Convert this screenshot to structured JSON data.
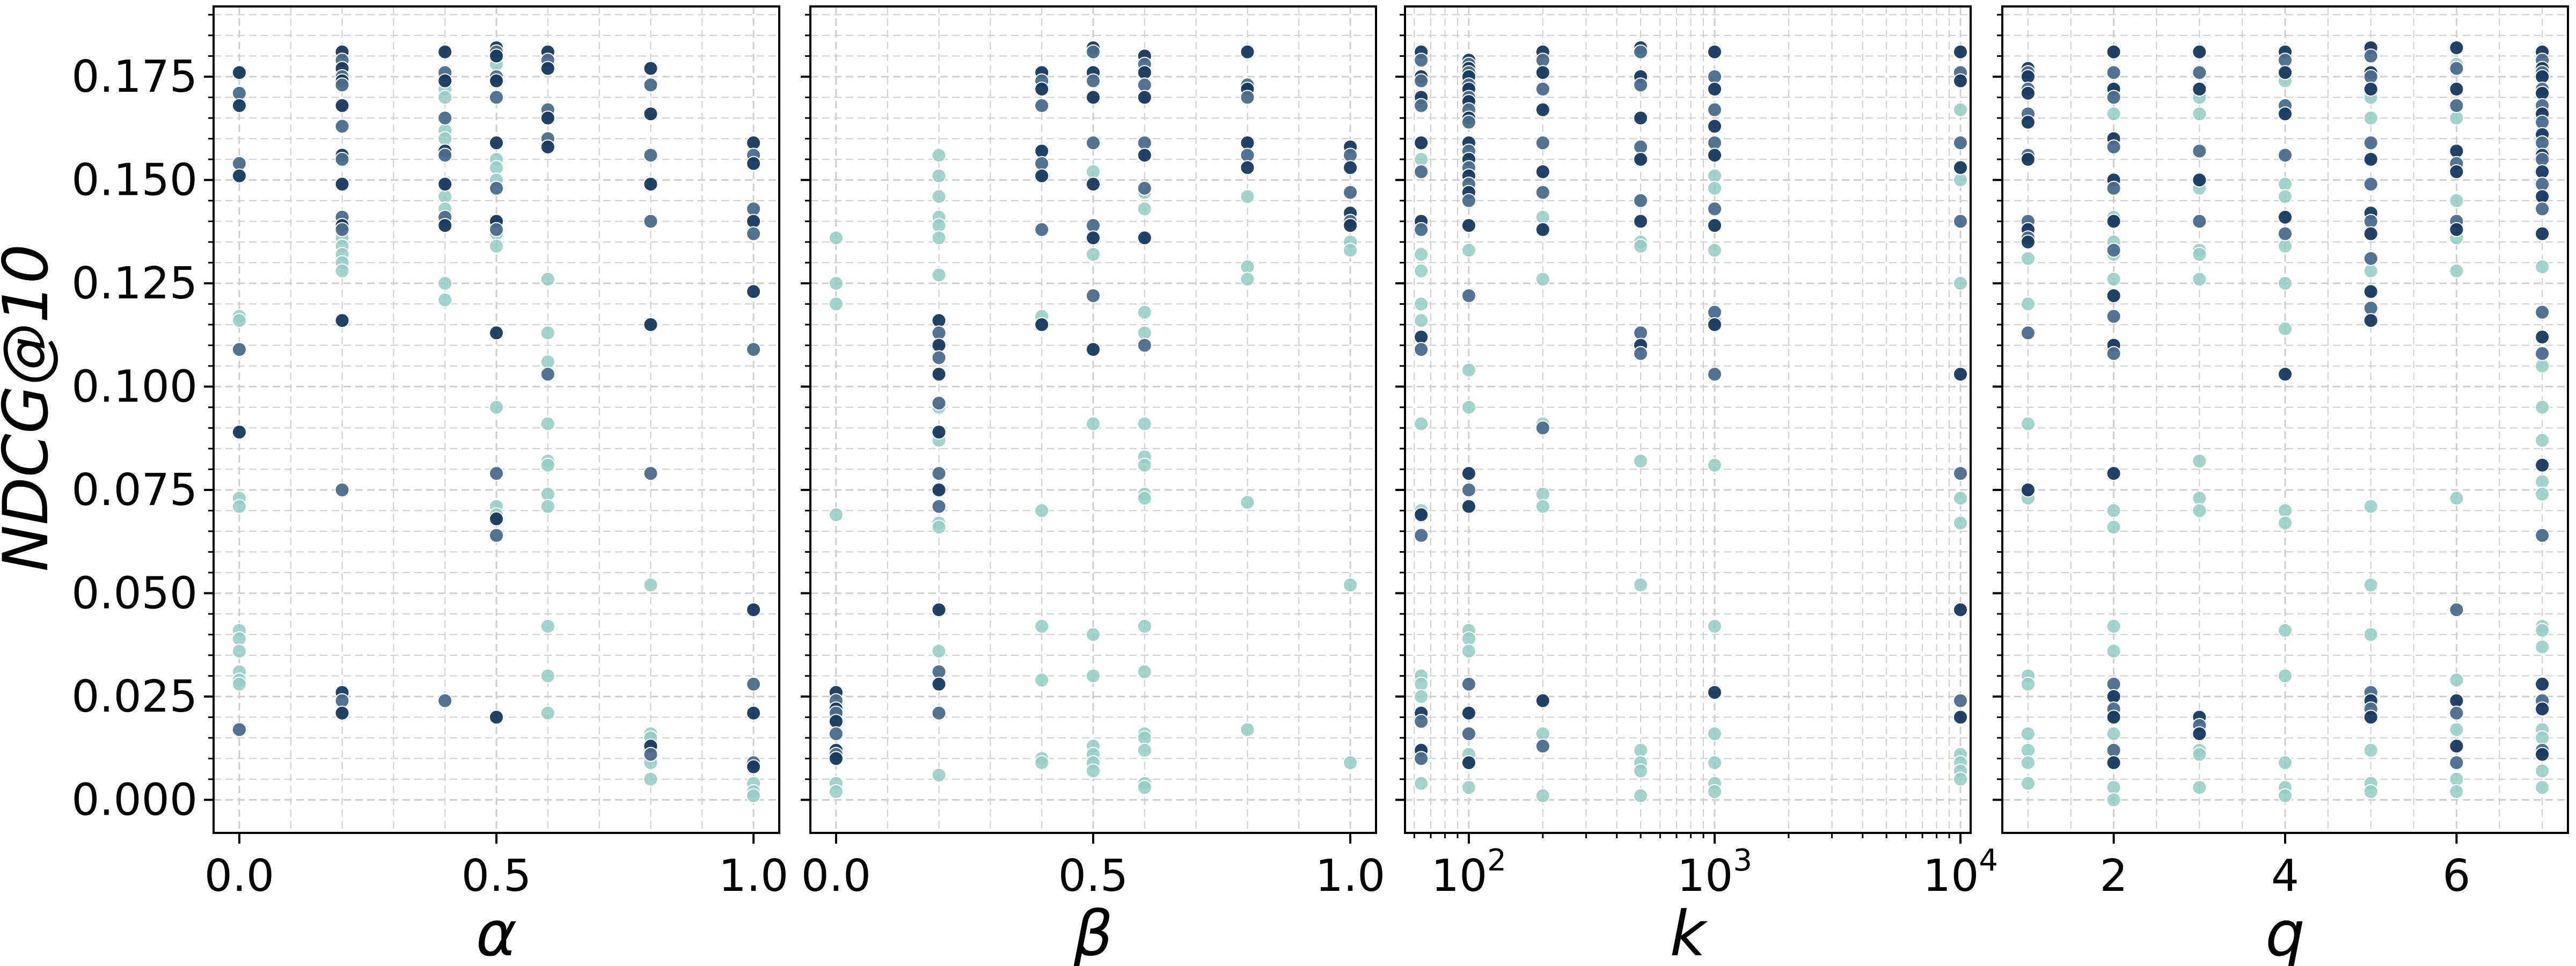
{
  "chart_data": [
    {
      "type": "scatter",
      "xlabel": "α",
      "ylabel": "NDCG@10",
      "xlim": [
        -0.05,
        1.05
      ],
      "ylim": [
        -0.008,
        0.192
      ],
      "x_ticks": [
        0.0,
        0.5,
        1.0
      ],
      "x_tick_labels": [
        "0.0",
        "0.5",
        "1.0"
      ],
      "y_ticks": [
        0.0,
        0.025,
        0.05,
        0.075,
        0.1,
        0.125,
        0.15,
        0.175
      ],
      "y_tick_labels": [
        "0.000",
        "0.025",
        "0.050",
        "0.075",
        "0.100",
        "0.125",
        "0.150",
        "0.175"
      ],
      "grid": true,
      "columns": [
        {
          "x": 0.0,
          "dark": [
            0.176,
            0.171,
            0.168,
            0.154,
            0.151,
            0.109,
            0.089,
            0.017
          ],
          "light": [
            0.117,
            0.116,
            0.073,
            0.071,
            0.041,
            0.039,
            0.036,
            0.031,
            0.029,
            0.028
          ]
        },
        {
          "x": 0.2,
          "dark": [
            0.181,
            0.179,
            0.177,
            0.175,
            0.174,
            0.173,
            0.168,
            0.163,
            0.156,
            0.155,
            0.149,
            0.141,
            0.139,
            0.138,
            0.116,
            0.075,
            0.026,
            0.024,
            0.021
          ],
          "light": [
            0.136,
            0.134,
            0.132,
            0.13,
            0.128
          ]
        },
        {
          "x": 0.4,
          "dark": [
            0.181,
            0.176,
            0.174,
            0.165,
            0.157,
            0.156,
            0.149,
            0.141,
            0.139,
            0.024
          ],
          "light": [
            0.172,
            0.17,
            0.162,
            0.16,
            0.146,
            0.143,
            0.14,
            0.125,
            0.121
          ]
        },
        {
          "x": 0.5,
          "dark": [
            0.182,
            0.181,
            0.18,
            0.175,
            0.174,
            0.17,
            0.159,
            0.148,
            0.14,
            0.138,
            0.113,
            0.079,
            0.068,
            0.064,
            0.02
          ],
          "light": [
            0.178,
            0.155,
            0.153,
            0.15,
            0.14,
            0.137,
            0.134,
            0.095,
            0.071,
            0.069
          ]
        },
        {
          "x": 0.6,
          "dark": [
            0.181,
            0.179,
            0.177,
            0.167,
            0.165,
            0.16,
            0.158,
            0.103
          ],
          "light": [
            0.126,
            0.113,
            0.106,
            0.091,
            0.082,
            0.081,
            0.074,
            0.071,
            0.042,
            0.03,
            0.021
          ]
        },
        {
          "x": 0.8,
          "dark": [
            0.177,
            0.173,
            0.166,
            0.156,
            0.149,
            0.14,
            0.115,
            0.079,
            0.013,
            0.011
          ],
          "light": [
            0.052,
            0.016,
            0.015,
            0.009,
            0.005
          ]
        },
        {
          "x": 1.0,
          "dark": [
            0.159,
            0.156,
            0.154,
            0.143,
            0.14,
            0.137,
            0.123,
            0.109,
            0.046,
            0.028,
            0.021,
            0.009,
            0.008
          ],
          "light": [
            0.004,
            0.002,
            0.001
          ]
        }
      ]
    },
    {
      "type": "scatter",
      "xlabel": "β",
      "xlim": [
        -0.05,
        1.05
      ],
      "ylim": [
        -0.008,
        0.192
      ],
      "x_ticks": [
        0.0,
        0.5,
        1.0
      ],
      "x_tick_labels": [
        "0.0",
        "0.5",
        "1.0"
      ],
      "grid": true,
      "columns": [
        {
          "x": 0.0,
          "dark": [
            0.026,
            0.024,
            0.022,
            0.021,
            0.019,
            0.016,
            0.012,
            0.011,
            0.01
          ],
          "light": [
            0.136,
            0.125,
            0.12,
            0.069,
            0.004,
            0.002
          ]
        },
        {
          "x": 0.2,
          "dark": [
            0.116,
            0.113,
            0.11,
            0.107,
            0.103,
            0.096,
            0.089,
            0.079,
            0.075,
            0.071,
            0.046,
            0.031,
            0.028,
            0.021
          ],
          "light": [
            0.156,
            0.151,
            0.146,
            0.141,
            0.139,
            0.136,
            0.127,
            0.095,
            0.087,
            0.067,
            0.066,
            0.036,
            0.006
          ]
        },
        {
          "x": 0.4,
          "dark": [
            0.176,
            0.174,
            0.172,
            0.168,
            0.157,
            0.154,
            0.151,
            0.138,
            0.115
          ],
          "light": [
            0.117,
            0.07,
            0.042,
            0.029,
            0.01,
            0.009
          ]
        },
        {
          "x": 0.5,
          "dark": [
            0.182,
            0.181,
            0.176,
            0.174,
            0.17,
            0.159,
            0.149,
            0.139,
            0.136,
            0.122,
            0.109
          ],
          "light": [
            0.152,
            0.132,
            0.091,
            0.04,
            0.03,
            0.013,
            0.011,
            0.009,
            0.007
          ]
        },
        {
          "x": 0.6,
          "dark": [
            0.18,
            0.178,
            0.176,
            0.173,
            0.17,
            0.159,
            0.156,
            0.148,
            0.136,
            0.11
          ],
          "light": [
            0.147,
            0.143,
            0.118,
            0.113,
            0.091,
            0.083,
            0.081,
            0.074,
            0.073,
            0.042,
            0.031,
            0.016,
            0.015,
            0.012,
            0.004,
            0.003
          ]
        },
        {
          "x": 0.8,
          "dark": [
            0.181,
            0.173,
            0.172,
            0.17,
            0.159,
            0.156,
            0.153
          ],
          "light": [
            0.146,
            0.129,
            0.126,
            0.072,
            0.017
          ]
        },
        {
          "x": 1.0,
          "dark": [
            0.158,
            0.156,
            0.153,
            0.147,
            0.142,
            0.14,
            0.139
          ],
          "light": [
            0.135,
            0.133,
            0.052,
            0.009
          ]
        }
      ]
    },
    {
      "type": "scatter",
      "xlabel": "k",
      "x_scale": "log",
      "xlim": [
        55,
        11000
      ],
      "ylim": [
        -0.008,
        0.192
      ],
      "x_ticks": [
        100,
        1000,
        10000
      ],
      "x_tick_labels": [
        "10",
        "10",
        "10"
      ],
      "x_tick_exponents": [
        "2",
        "3",
        "4"
      ],
      "grid": true,
      "columns": [
        {
          "x": 64,
          "dark": [
            0.181,
            0.179,
            0.175,
            0.174,
            0.17,
            0.168,
            0.159,
            0.152,
            0.14,
            0.138,
            0.112,
            0.109,
            0.069,
            0.064,
            0.021,
            0.019,
            0.012,
            0.01
          ],
          "light": [
            0.155,
            0.132,
            0.128,
            0.12,
            0.116,
            0.091,
            0.07,
            0.03,
            0.028,
            0.025,
            0.004
          ]
        },
        {
          "x": 100,
          "dark": [
            0.179,
            0.178,
            0.177,
            0.176,
            0.175,
            0.173,
            0.172,
            0.17,
            0.169,
            0.167,
            0.165,
            0.164,
            0.159,
            0.157,
            0.155,
            0.153,
            0.151,
            0.149,
            0.147,
            0.145,
            0.139,
            0.122,
            0.079,
            0.075,
            0.071,
            0.028,
            0.021,
            0.016,
            0.009
          ],
          "light": [
            0.133,
            0.104,
            0.095,
            0.041,
            0.039,
            0.036,
            0.011,
            0.003
          ]
        },
        {
          "x": 200,
          "dark": [
            0.181,
            0.179,
            0.176,
            0.172,
            0.167,
            0.159,
            0.152,
            0.147,
            0.138,
            0.09,
            0.024,
            0.013
          ],
          "light": [
            0.141,
            0.126,
            0.091,
            0.074,
            0.071,
            0.016,
            0.001
          ]
        },
        {
          "x": 500,
          "dark": [
            0.182,
            0.181,
            0.175,
            0.173,
            0.165,
            0.158,
            0.155,
            0.145,
            0.14,
            0.113,
            0.11,
            0.108
          ],
          "light": [
            0.135,
            0.134,
            0.082,
            0.052,
            0.012,
            0.009,
            0.007,
            0.001
          ]
        },
        {
          "x": 1000,
          "dark": [
            0.181,
            0.175,
            0.172,
            0.167,
            0.163,
            0.159,
            0.156,
            0.143,
            0.139,
            0.118,
            0.115,
            0.103,
            0.026
          ],
          "light": [
            0.151,
            0.148,
            0.133,
            0.116,
            0.081,
            0.042,
            0.016,
            0.009,
            0.004,
            0.002
          ]
        },
        {
          "x": 10000,
          "dark": [
            0.181,
            0.176,
            0.174,
            0.159,
            0.153,
            0.14,
            0.103,
            0.079,
            0.046,
            0.024,
            0.02
          ],
          "light": [
            0.167,
            0.15,
            0.125,
            0.073,
            0.067,
            0.011,
            0.009,
            0.007,
            0.005
          ]
        }
      ]
    },
    {
      "type": "scatter",
      "xlabel": "q",
      "xlim": [
        0.7,
        7.3
      ],
      "ylim": [
        -0.008,
        0.192
      ],
      "x_ticks": [
        2,
        4,
        6
      ],
      "x_tick_labels": [
        "2",
        "4",
        "6"
      ],
      "grid": true,
      "columns": [
        {
          "x": 1,
          "dark": [
            0.177,
            0.176,
            0.175,
            0.172,
            0.171,
            0.166,
            0.164,
            0.156,
            0.155,
            0.14,
            0.138,
            0.136,
            0.135,
            0.113,
            0.075
          ],
          "light": [
            0.131,
            0.12,
            0.091,
            0.073,
            0.03,
            0.028,
            0.016,
            0.012,
            0.009,
            0.004
          ]
        },
        {
          "x": 2,
          "dark": [
            0.181,
            0.176,
            0.172,
            0.17,
            0.16,
            0.158,
            0.15,
            0.148,
            0.14,
            0.133,
            0.122,
            0.117,
            0.11,
            0.108,
            0.079,
            0.028,
            0.025,
            0.022,
            0.02,
            0.012,
            0.009
          ],
          "light": [
            0.172,
            0.166,
            0.141,
            0.135,
            0.132,
            0.126,
            0.07,
            0.066,
            0.042,
            0.036,
            0.016,
            0.003,
            0.0
          ]
        },
        {
          "x": 3,
          "dark": [
            0.181,
            0.176,
            0.172,
            0.157,
            0.15,
            0.14,
            0.02,
            0.018,
            0.016
          ],
          "light": [
            0.17,
            0.166,
            0.148,
            0.14,
            0.133,
            0.132,
            0.126,
            0.082,
            0.073,
            0.07,
            0.012,
            0.011,
            0.003
          ]
        },
        {
          "x": 4,
          "dark": [
            0.181,
            0.179,
            0.176,
            0.168,
            0.166,
            0.156,
            0.141,
            0.137,
            0.103
          ],
          "light": [
            0.174,
            0.149,
            0.146,
            0.134,
            0.125,
            0.114,
            0.07,
            0.067,
            0.041,
            0.03,
            0.009,
            0.003,
            0.001
          ]
        },
        {
          "x": 5,
          "dark": [
            0.182,
            0.18,
            0.176,
            0.175,
            0.172,
            0.159,
            0.155,
            0.149,
            0.142,
            0.14,
            0.137,
            0.131,
            0.123,
            0.119,
            0.116,
            0.026,
            0.024,
            0.022,
            0.02
          ],
          "light": [
            0.17,
            0.165,
            0.128,
            0.071,
            0.052,
            0.04,
            0.012,
            0.004,
            0.002
          ]
        },
        {
          "x": 6,
          "dark": [
            0.182,
            0.177,
            0.172,
            0.168,
            0.157,
            0.154,
            0.152,
            0.14,
            0.138,
            0.046,
            0.024,
            0.021,
            0.013,
            0.009
          ],
          "light": [
            0.178,
            0.165,
            0.145,
            0.136,
            0.128,
            0.073,
            0.029,
            0.017,
            0.005,
            0.002
          ]
        },
        {
          "x": 7,
          "dark": [
            0.181,
            0.179,
            0.177,
            0.176,
            0.175,
            0.172,
            0.171,
            0.168,
            0.166,
            0.164,
            0.161,
            0.159,
            0.156,
            0.155,
            0.152,
            0.149,
            0.146,
            0.143,
            0.137,
            0.118,
            0.112,
            0.108,
            0.081,
            0.064,
            0.028,
            0.024,
            0.022,
            0.012,
            0.011
          ],
          "light": [
            0.157,
            0.129,
            0.105,
            0.095,
            0.087,
            0.077,
            0.074,
            0.042,
            0.041,
            0.037,
            0.017,
            0.015,
            0.007,
            0.003
          ]
        }
      ]
    }
  ],
  "colors": {
    "dark": "#15385f",
    "medium": "#4a6b8c",
    "light": "#92cdc3",
    "grid": "#cfcfcf"
  }
}
